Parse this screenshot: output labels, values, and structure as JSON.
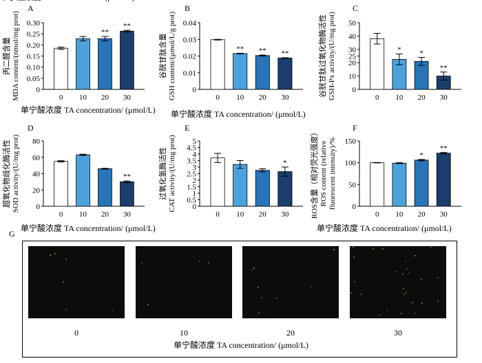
{
  "chart_data": [
    {
      "panel": "A",
      "type": "bar",
      "categories": [
        "0",
        "10",
        "20",
        "30"
      ],
      "values": [
        0.185,
        0.228,
        0.228,
        0.262
      ],
      "errors": [
        0.005,
        0.01,
        0.01,
        0.004
      ],
      "sig": [
        "",
        "",
        "**",
        "**"
      ],
      "ylim": [
        0,
        0.3
      ],
      "yticks": [
        "0",
        "0.05",
        "0.10",
        "0.15",
        "0.20",
        "0.25",
        "0.30"
      ],
      "ylabel": [
        "丙二醛含量",
        "MDA content/(nmol/mg prot)"
      ],
      "xlabel": "单宁酸浓度 TA concentration/ (μmol/L)"
    },
    {
      "panel": "B",
      "type": "bar",
      "categories": [
        "0",
        "10",
        "20",
        "30"
      ],
      "values": [
        0.0298,
        0.0215,
        0.0203,
        0.0188
      ],
      "errors": [
        0.0002,
        0.0002,
        0.0003,
        0.0002
      ],
      "sig": [
        "",
        "**",
        "**",
        "**"
      ],
      "ylim": [
        0,
        0.04
      ],
      "yticks": [
        "0",
        "0.01",
        "0.02",
        "0.03",
        "0.04"
      ],
      "ylabel": [
        "谷胱甘肽含量",
        "GSH content/(μmol/L/g prot)"
      ],
      "xlabel": "单宁酸浓度 TA concentration/ (μmol/L)"
    },
    {
      "panel": "C",
      "type": "bar",
      "categories": [
        "0",
        "10",
        "20",
        "30"
      ],
      "values": [
        38,
        22.5,
        21,
        10
      ],
      "errors": [
        4,
        4,
        3,
        3
      ],
      "sig": [
        "",
        "*",
        "*",
        "**"
      ],
      "ylim": [
        0,
        50
      ],
      "yticks": [
        "0",
        "10",
        "20",
        "25",
        "30",
        "40",
        "50"
      ],
      "ylabel": [
        "谷胱甘肽过氧化物酶活性",
        "GSH-Px activity/(U/mg prot)"
      ],
      "xlabel": "单宁酸浓度 TA concentration/ (μmol/L)"
    },
    {
      "panel": "D",
      "type": "bar",
      "categories": [
        "0",
        "10",
        "20",
        "30"
      ],
      "values": [
        55,
        63,
        46,
        30
      ],
      "errors": [
        0.8,
        0.8,
        0.5,
        1
      ],
      "sig": [
        "",
        "",
        "",
        "**"
      ],
      "ylim": [
        0,
        80
      ],
      "yticks": [
        "0",
        "20",
        "40",
        "60",
        "80"
      ],
      "ylabel": [
        "超氧化物歧化酶活性",
        "SOD activity/(U/mg prot)"
      ],
      "xlabel": "单宁酸浓度 TA concentration/ (μmol/L)"
    },
    {
      "panel": "E",
      "type": "bar",
      "categories": [
        "0",
        "10",
        "20",
        "30"
      ],
      "values": [
        3.7,
        3.2,
        2.75,
        2.65
      ],
      "errors": [
        0.35,
        0.3,
        0.12,
        0.35
      ],
      "sig": [
        "",
        "",
        "",
        "*"
      ],
      "ylim": [
        0,
        5
      ],
      "yticks": [
        "0",
        "0.5",
        "1",
        "1.5",
        "2",
        "2.5",
        "3",
        "3.5",
        "4",
        "4.5",
        "5"
      ],
      "ylabel": [
        "过氧化氢酶活性",
        "CAT activity/(U/mg prot)"
      ],
      "xlabel": ""
    },
    {
      "panel": "F",
      "type": "bar",
      "categories": [
        "0",
        "10",
        "20",
        "30"
      ],
      "values": [
        100,
        99,
        106,
        122
      ],
      "errors": [
        0.5,
        1,
        1.5,
        1.5
      ],
      "sig": [
        "",
        "",
        "*",
        "**"
      ],
      "ylim": [
        0,
        150
      ],
      "yticks": [
        "0",
        "50",
        "100",
        "150"
      ],
      "ylabel": [
        "ROS含量（相对荧光强度）",
        "ROS content (relative",
        "fluorescent intensity)/%"
      ],
      "xlabel": "单宁酸浓度 TA concentration/ (μmol/L)"
    }
  ],
  "bar_colors": [
    "#ffffff",
    "#4ba3dd",
    "#2774b8",
    "#1a3f6e"
  ],
  "panel_g": {
    "letter": "G",
    "images": [
      {
        "label": "0"
      },
      {
        "label": "10"
      },
      {
        "label": "20"
      },
      {
        "label": "30"
      }
    ],
    "xlabel": "单宁酸浓度 TA concentration/ (μmol/L)",
    "fluorescence_color": "#3fbf3a"
  }
}
